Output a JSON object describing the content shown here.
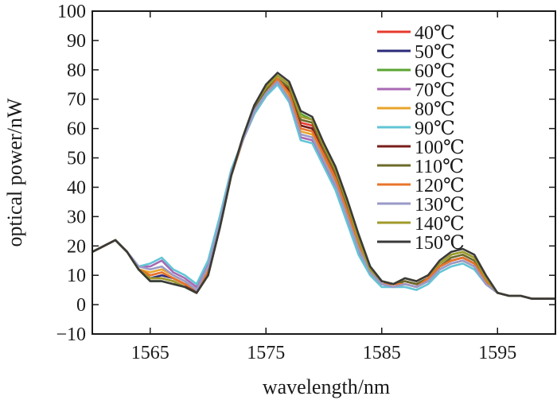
{
  "chart_data": {
    "type": "line",
    "title": "",
    "xlabel": "wavelength/nm",
    "ylabel": "optical power/nW",
    "xlim": [
      1560,
      1600
    ],
    "ylim": [
      -10,
      100
    ],
    "grid": false,
    "legend_position": "top-right",
    "x_ticks": [
      {
        "value": 1565,
        "label": "1565"
      },
      {
        "value": 1575,
        "label": "1575"
      },
      {
        "value": 1585,
        "label": "1585"
      },
      {
        "value": 1595,
        "label": "1595"
      }
    ],
    "y_ticks": [
      {
        "value": -10,
        "label": "−10"
      },
      {
        "value": 0,
        "label": "0"
      },
      {
        "value": 10,
        "label": "10"
      },
      {
        "value": 20,
        "label": "20"
      },
      {
        "value": 30,
        "label": "30"
      },
      {
        "value": 40,
        "label": "40"
      },
      {
        "value": 50,
        "label": "50"
      },
      {
        "value": 60,
        "label": "60"
      },
      {
        "value": 70,
        "label": "70"
      },
      {
        "value": 80,
        "label": "80"
      },
      {
        "value": 90,
        "label": "90"
      },
      {
        "value": 100,
        "label": "100"
      }
    ],
    "x": [
      1560,
      1561,
      1562,
      1563,
      1564,
      1565,
      1566,
      1567,
      1568,
      1569,
      1570,
      1571,
      1572,
      1573,
      1574,
      1575,
      1576,
      1577,
      1578,
      1579,
      1580,
      1581,
      1582,
      1583,
      1584,
      1585,
      1586,
      1587,
      1588,
      1589,
      1590,
      1591,
      1592,
      1593,
      1594,
      1595,
      1596,
      1597,
      1598,
      1599,
      1600
    ],
    "series": [
      {
        "name": "40℃",
        "color": "#e8392e",
        "values": [
          18,
          20,
          22,
          18,
          12,
          9,
          9,
          8,
          6,
          4,
          10,
          26,
          44,
          56,
          67,
          73,
          77,
          73,
          62,
          61,
          52,
          44,
          33,
          21,
          12,
          8,
          7,
          8,
          7,
          9,
          13,
          15,
          16,
          14,
          8,
          4,
          3,
          3,
          2,
          2,
          2
        ]
      },
      {
        "name": "50℃",
        "color": "#2b2a7a",
        "values": [
          18,
          20,
          22,
          18,
          12,
          9,
          10,
          9,
          7,
          4,
          10,
          26,
          44,
          56,
          67,
          73,
          76,
          72,
          61,
          60,
          51,
          43,
          32,
          20,
          12,
          8,
          7,
          8,
          7,
          9,
          13,
          15,
          16,
          14,
          8,
          4,
          3,
          3,
          2,
          2,
          2
        ]
      },
      {
        "name": "60℃",
        "color": "#5aa532",
        "values": [
          18,
          20,
          22,
          18,
          12,
          8,
          8,
          7,
          6,
          4,
          10,
          26,
          44,
          57,
          68,
          74,
          78,
          75,
          65,
          63,
          54,
          46,
          35,
          23,
          13,
          8,
          7,
          9,
          8,
          10,
          14,
          17,
          18,
          16,
          9,
          4,
          3,
          3,
          2,
          2,
          2
        ]
      },
      {
        "name": "70℃",
        "color": "#a869b4",
        "values": [
          18,
          20,
          22,
          18,
          13,
          13,
          15,
          11,
          9,
          6,
          14,
          29,
          45,
          56,
          65,
          71,
          76,
          70,
          57,
          56,
          48,
          40,
          29,
          18,
          11,
          7,
          6,
          7,
          6,
          8,
          12,
          14,
          15,
          13,
          7,
          4,
          3,
          3,
          2,
          2,
          2
        ]
      },
      {
        "name": "80℃",
        "color": "#e8a52a",
        "values": [
          18,
          20,
          22,
          18,
          12,
          11,
          12,
          10,
          8,
          5,
          12,
          28,
          45,
          56,
          66,
          72,
          76,
          71,
          59,
          58,
          50,
          42,
          31,
          19,
          11,
          7,
          6,
          7,
          6,
          8,
          12,
          14,
          15,
          13,
          7,
          4,
          3,
          3,
          2,
          2,
          2
        ]
      },
      {
        "name": "90℃",
        "color": "#62c5d6",
        "values": [
          18,
          20,
          22,
          18,
          13,
          14,
          16,
          12,
          10,
          7,
          15,
          30,
          46,
          56,
          65,
          71,
          75,
          69,
          56,
          55,
          47,
          39,
          28,
          17,
          10,
          6,
          6,
          6,
          5,
          7,
          11,
          13,
          14,
          12,
          7,
          4,
          3,
          3,
          2,
          2,
          2
        ]
      },
      {
        "name": "100℃",
        "color": "#7a1e1a",
        "values": [
          18,
          20,
          22,
          18,
          12,
          10,
          11,
          9,
          7,
          4,
          11,
          27,
          44,
          56,
          67,
          73,
          77,
          73,
          61,
          60,
          51,
          43,
          32,
          20,
          12,
          8,
          7,
          8,
          7,
          9,
          13,
          15,
          16,
          14,
          8,
          4,
          3,
          3,
          2,
          2,
          2
        ]
      },
      {
        "name": "110℃",
        "color": "#6b6a2a",
        "values": [
          18,
          20,
          22,
          18,
          12,
          9,
          9,
          8,
          6,
          4,
          10,
          26,
          44,
          56,
          67,
          73,
          77,
          74,
          63,
          62,
          53,
          45,
          34,
          22,
          12,
          8,
          7,
          8,
          7,
          9,
          13,
          16,
          17,
          15,
          8,
          4,
          3,
          3,
          2,
          2,
          2
        ]
      },
      {
        "name": "120℃",
        "color": "#e8742a",
        "values": [
          18,
          20,
          22,
          18,
          12,
          10,
          11,
          9,
          7,
          5,
          11,
          27,
          44,
          56,
          66,
          72,
          77,
          72,
          60,
          59,
          51,
          43,
          32,
          20,
          11,
          7,
          7,
          7,
          6,
          9,
          13,
          15,
          16,
          14,
          8,
          4,
          3,
          3,
          2,
          2,
          2
        ]
      },
      {
        "name": "130℃",
        "color": "#9a9ac8",
        "values": [
          18,
          20,
          22,
          18,
          13,
          12,
          13,
          10,
          8,
          5,
          13,
          28,
          45,
          56,
          66,
          72,
          76,
          70,
          58,
          57,
          49,
          41,
          30,
          19,
          11,
          7,
          6,
          7,
          6,
          8,
          12,
          14,
          15,
          13,
          7,
          4,
          3,
          3,
          2,
          2,
          2
        ]
      },
      {
        "name": "140℃",
        "color": "#a09a2a",
        "values": [
          18,
          20,
          22,
          18,
          12,
          9,
          9,
          8,
          6,
          4,
          10,
          26,
          44,
          57,
          68,
          74,
          78,
          75,
          64,
          63,
          54,
          46,
          35,
          22,
          12,
          8,
          7,
          9,
          8,
          10,
          14,
          17,
          18,
          16,
          9,
          4,
          3,
          3,
          2,
          2,
          2
        ]
      },
      {
        "name": "150℃",
        "color": "#3a3a3a",
        "values": [
          18,
          20,
          22,
          18,
          12,
          8,
          8,
          7,
          6,
          4,
          10,
          26,
          44,
          57,
          68,
          75,
          79,
          76,
          66,
          64,
          55,
          47,
          36,
          24,
          13,
          8,
          7,
          9,
          8,
          10,
          15,
          18,
          19,
          17,
          10,
          4,
          3,
          3,
          2,
          2,
          2
        ]
      }
    ]
  }
}
